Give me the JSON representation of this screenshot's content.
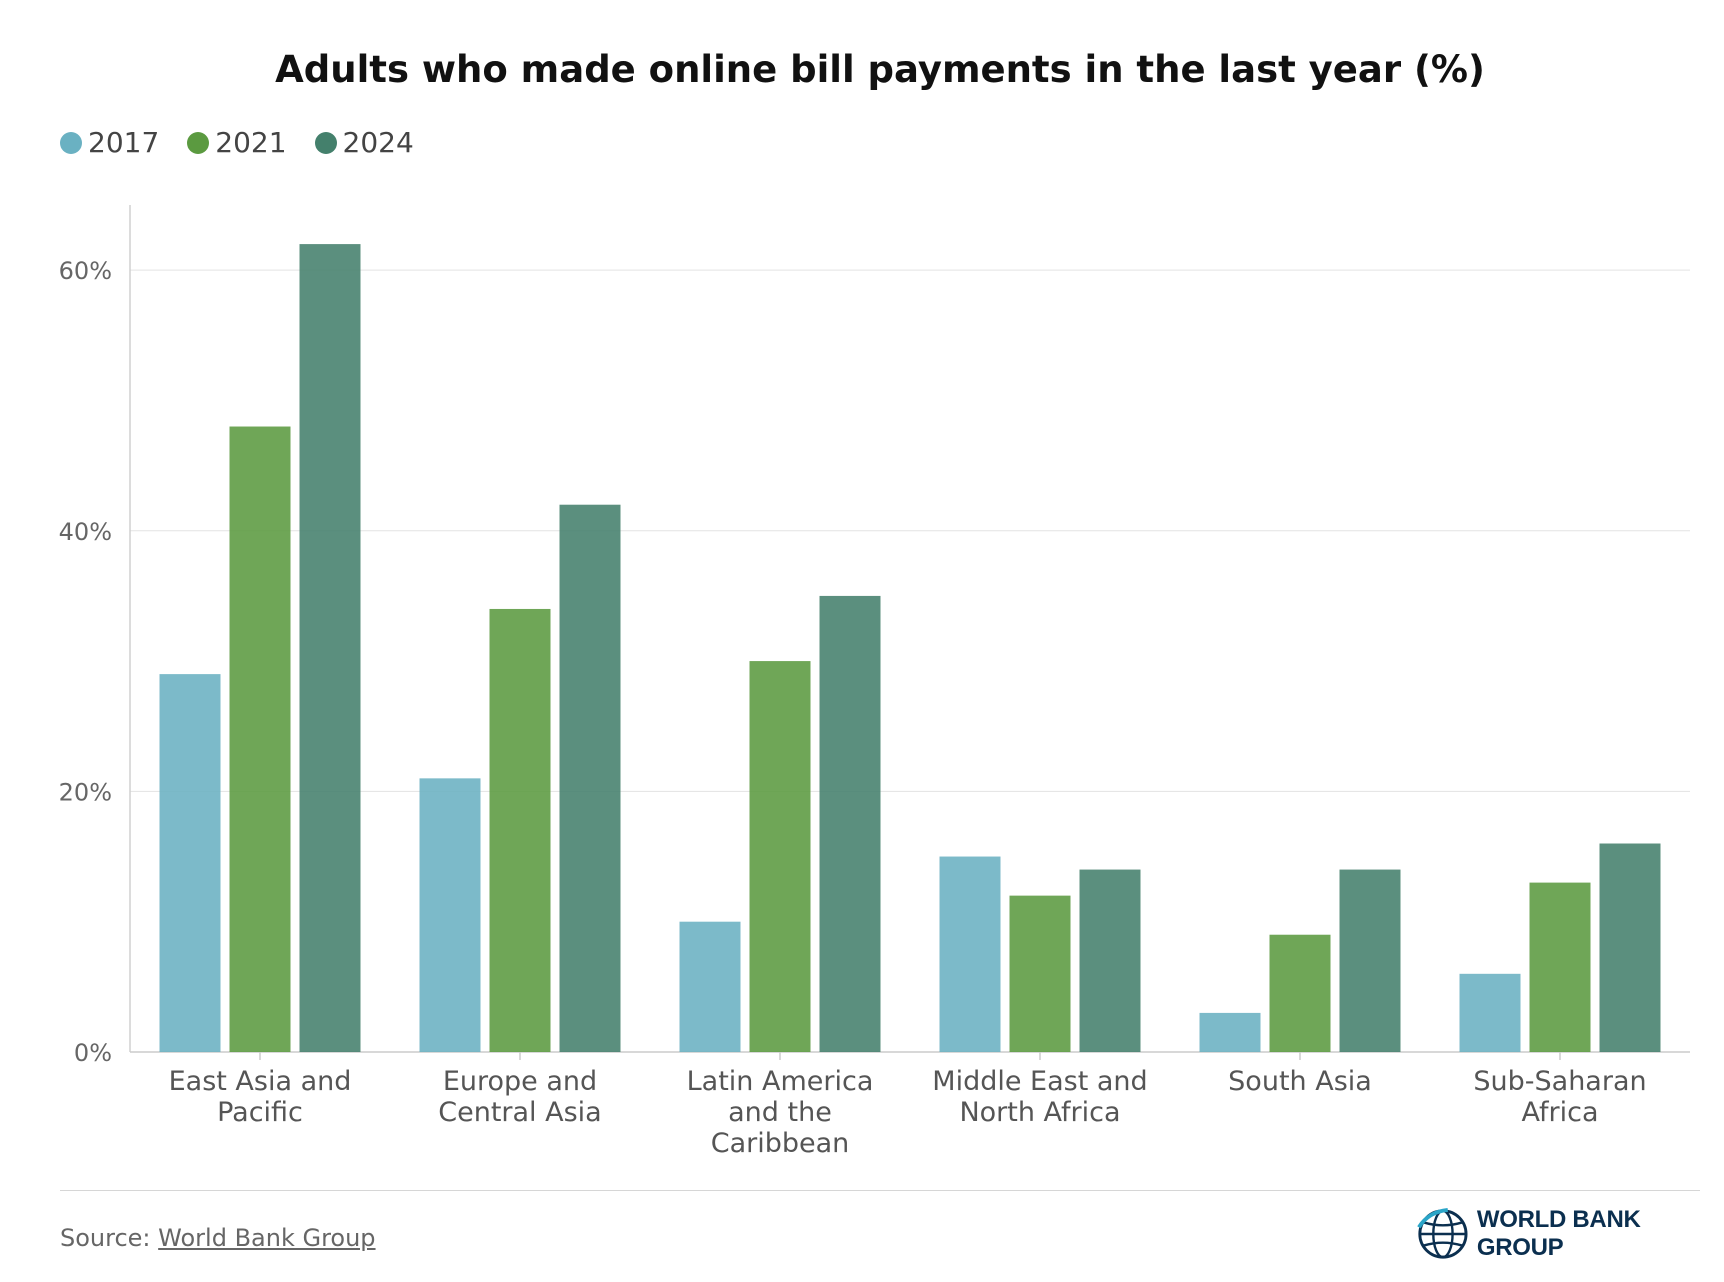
{
  "chart_data": {
    "type": "bar",
    "title": "Adults who made online bill payments in the last year (%)",
    "categories": [
      [
        "East Asia and",
        "Pacific"
      ],
      [
        "Europe and",
        "Central Asia"
      ],
      [
        "Latin America",
        "and the",
        "Caribbean"
      ],
      [
        "Middle East and",
        "North Africa"
      ],
      [
        "South Asia"
      ],
      [
        "Sub-Saharan",
        "Africa"
      ]
    ],
    "series": [
      {
        "name": "2017",
        "color": "#6ab1c2",
        "values": [
          29,
          21,
          10,
          15,
          3,
          6
        ]
      },
      {
        "name": "2021",
        "color": "#5b9a40",
        "values": [
          48,
          34,
          30,
          12,
          9,
          13
        ]
      },
      {
        "name": "2024",
        "color": "#44806c",
        "values": [
          62,
          42,
          35,
          14,
          14,
          16
        ]
      }
    ],
    "ylim": [
      0,
      65
    ],
    "yticks": [
      0,
      20,
      40,
      60
    ],
    "ytick_labels": [
      "0%",
      "20%",
      "40%",
      "60%"
    ],
    "grid": true,
    "legend_position": "top-left"
  },
  "footer": {
    "source_prefix": "Source: ",
    "source_link": "World Bank Group",
    "logo_text": "WORLD BANK GROUP"
  }
}
